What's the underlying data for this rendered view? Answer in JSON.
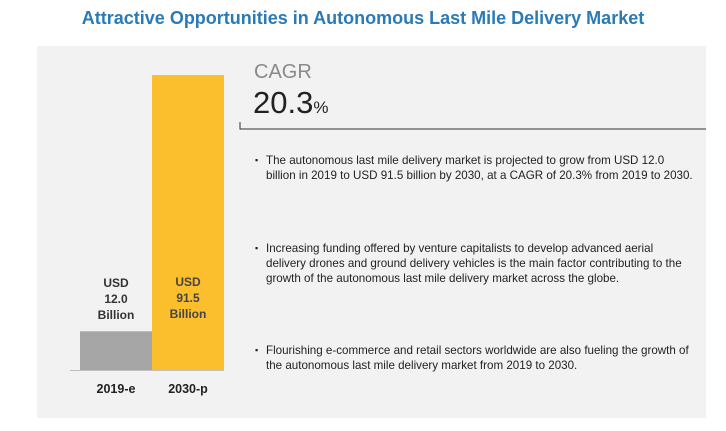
{
  "title": "Attractive Opportunities in Autonomous Last Mile Delivery Market",
  "chart_data": {
    "type": "bar",
    "categories": [
      "2019-e",
      "2030-p"
    ],
    "values": [
      12.0,
      91.5
    ],
    "data_labels": [
      "USD\n12.0\nBillion",
      "USD\n91.5\nBillion"
    ],
    "bar_colors": [
      "#a6a6a6",
      "#fbbe2c"
    ],
    "ylim": [
      0,
      91.5
    ],
    "grid": false,
    "legend": "none"
  },
  "cagr": {
    "label": "CAGR",
    "value": "20.3",
    "unit": "%"
  },
  "bullets": [
    "The autonomous last mile delivery market is projected to grow from USD 12.0 billion in 2019 to USD 91.5 billion by 2030, at a CAGR of 20.3% from 2019 to 2030.",
    "Increasing funding offered by venture capitalists to develop advanced aerial delivery drones and ground delivery vehicles is the main factor contributing to the growth of the autonomous last mile delivery market across the globe.",
    "Flourishing e-commerce and retail sectors worldwide are also fueling the growth of the autonomous last mile delivery market from 2019 to 2030."
  ],
  "bullet_glyph": "▪",
  "colors": {
    "title": "#2a7ab8",
    "panel": "#f2f2f2",
    "cagr_underline": "#333333"
  }
}
